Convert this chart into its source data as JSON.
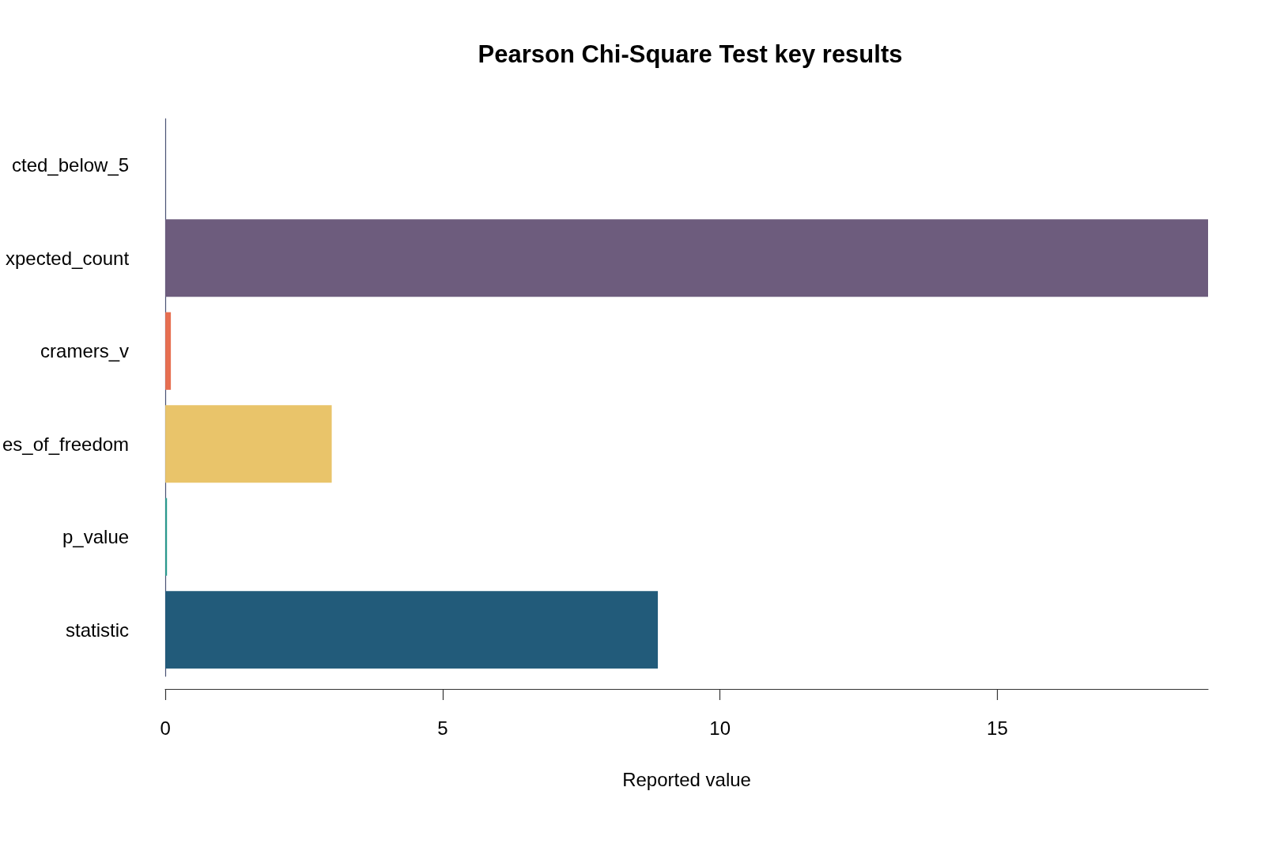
{
  "chart_data": {
    "type": "bar",
    "orientation": "horizontal",
    "title": "Pearson Chi-Square Test key results",
    "xlabel": "Reported value",
    "categories": [
      "cted_below_5",
      "xpected_count",
      "cramers_v",
      "es_of_freedom",
      "p_value",
      "statistic"
    ],
    "values": [
      0,
      18.8,
      0.1,
      3,
      0.03,
      8.88
    ],
    "colors": [
      "#3d405b",
      "#6d5c7d",
      "#e76f51",
      "#e9c46a",
      "#2a9d8f",
      "#225b7a"
    ],
    "xlim": [
      0,
      18.8
    ],
    "xticks": [
      0,
      5,
      10,
      15
    ]
  }
}
